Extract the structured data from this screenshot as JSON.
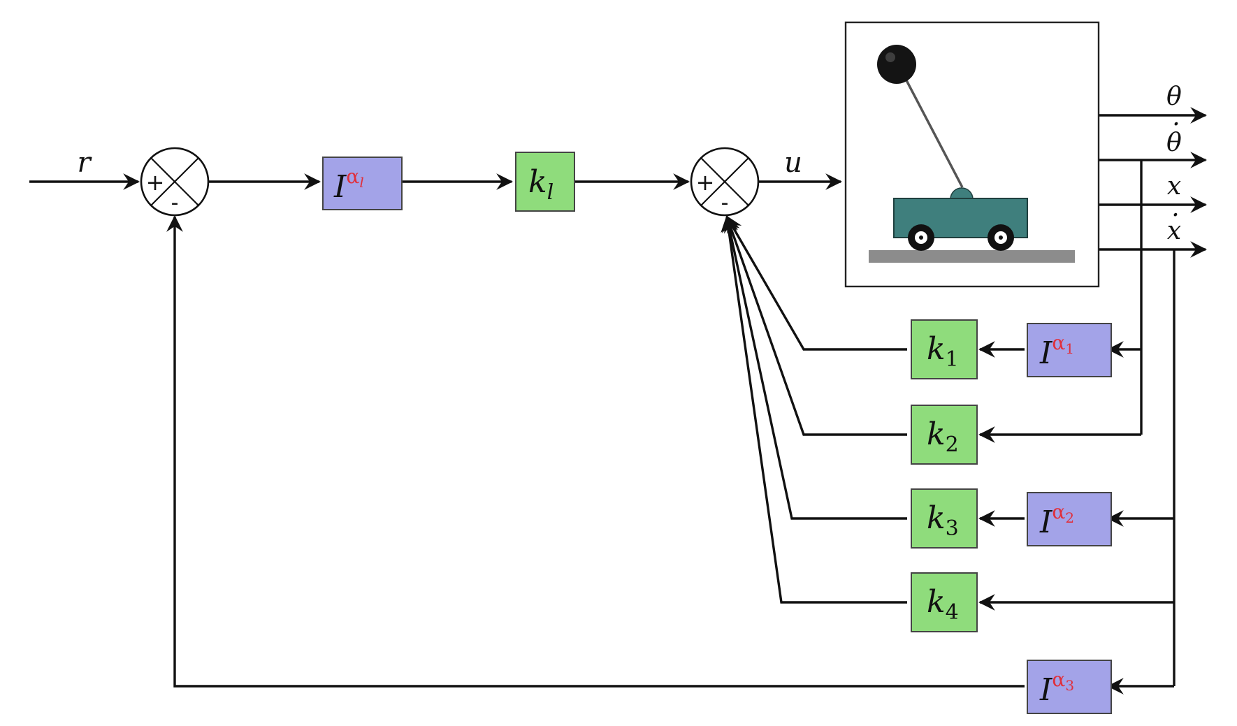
{
  "colors": {
    "gain_block": "#8fdc7c",
    "fractional_block": "#a3a3e8",
    "superscript": "#e0303c",
    "cart_body": "#3f7f7d",
    "ground": "#8c8c8c"
  },
  "signals": {
    "reference": "r",
    "control": "u",
    "theta": "θ",
    "theta_dot": "θ",
    "position": "x",
    "position_dot": "x",
    "derivative_mark": "·"
  },
  "summing_junctions": {
    "plus_sign": "+",
    "minus_sign": "-"
  },
  "blocks": {
    "fractional_base": "I",
    "alpha_l_sup": "α",
    "alpha_l_sub": "l",
    "k_base": "k",
    "k_l_sub": "l",
    "alpha_1_sub": "1",
    "alpha_2_sub": "2",
    "alpha_3_sub": "3",
    "k1_sub": "1",
    "k2_sub": "2",
    "k3_sub": "3",
    "k4_sub": "4"
  },
  "plant": {
    "icon": "inverted-pendulum-cart-icon"
  }
}
